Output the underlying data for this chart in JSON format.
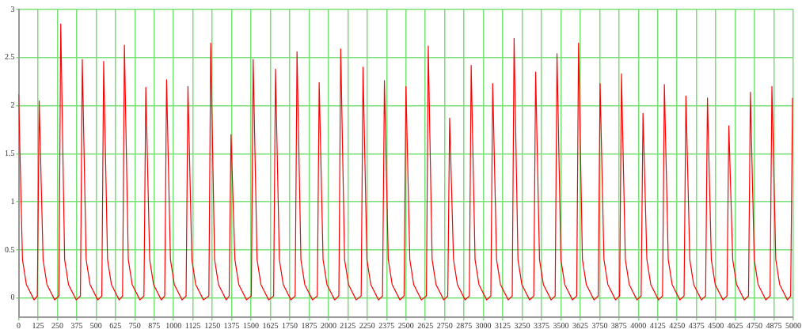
{
  "chart_data": {
    "type": "line",
    "x": [
      0,
      25,
      50,
      100,
      121,
      133,
      158,
      183,
      233,
      260,
      272,
      297,
      322,
      372,
      399,
      411,
      436,
      461,
      511,
      537,
      549,
      574,
      599,
      649,
      671,
      683,
      708,
      733,
      783,
      809,
      821,
      846,
      871,
      921,
      943,
      955,
      980,
      1005,
      1055,
      1081,
      1093,
      1118,
      1143,
      1193,
      1228,
      1240,
      1265,
      1290,
      1340,
      1359,
      1371,
      1396,
      1421,
      1471,
      1502,
      1514,
      1539,
      1564,
      1614,
      1646,
      1658,
      1683,
      1708,
      1758,
      1785,
      1797,
      1822,
      1847,
      1897,
      1928,
      1940,
      1965,
      1990,
      2040,
      2067,
      2079,
      2104,
      2129,
      2179,
      2211,
      2223,
      2248,
      2273,
      2323,
      2349,
      2361,
      2386,
      2411,
      2461,
      2488,
      2500,
      2525,
      2550,
      2600,
      2632,
      2644,
      2669,
      2694,
      2744,
      2770,
      2782,
      2807,
      2832,
      2882,
      2909,
      2921,
      2946,
      2971,
      3021,
      3048,
      3060,
      3085,
      3110,
      3160,
      3186,
      3198,
      3223,
      3248,
      3298,
      3325,
      3337,
      3362,
      3387,
      3437,
      3463,
      3475,
      3500,
      3525,
      3575,
      3602,
      3614,
      3639,
      3664,
      3714,
      3741,
      3753,
      3778,
      3803,
      3853,
      3879,
      3891,
      3916,
      3941,
      3991,
      4018,
      4030,
      4055,
      4080,
      4130,
      4156,
      4168,
      4193,
      4218,
      4268,
      4295,
      4307,
      4332,
      4357,
      4407,
      4434,
      4446,
      4471,
      4496,
      4546,
      4572,
      4584,
      4609,
      4634,
      4684,
      4711,
      4723,
      4748,
      4773,
      4823,
      4850,
      4862,
      4887,
      4912,
      4962,
      4983,
      4995
    ],
    "values": [
      2.12,
      0.4,
      0.14,
      -0.02,
      0.02,
      2.05,
      0.4,
      0.14,
      -0.02,
      0.02,
      2.85,
      0.4,
      0.14,
      -0.02,
      0.02,
      2.48,
      0.4,
      0.14,
      -0.02,
      0.02,
      2.46,
      0.4,
      0.14,
      -0.02,
      0.02,
      2.63,
      0.4,
      0.14,
      -0.02,
      0.02,
      2.19,
      0.4,
      0.14,
      -0.02,
      0.02,
      2.27,
      0.4,
      0.14,
      -0.02,
      0.02,
      2.2,
      0.4,
      0.14,
      -0.02,
      0.02,
      2.65,
      0.4,
      0.14,
      -0.02,
      0.02,
      1.7,
      0.4,
      0.14,
      -0.02,
      0.02,
      2.48,
      0.4,
      0.14,
      -0.02,
      0.02,
      2.38,
      0.4,
      0.14,
      -0.02,
      0.02,
      2.56,
      0.4,
      0.14,
      -0.02,
      0.02,
      2.24,
      0.4,
      0.14,
      -0.02,
      0.02,
      2.59,
      0.4,
      0.14,
      -0.02,
      0.02,
      2.4,
      0.4,
      0.14,
      -0.02,
      0.02,
      2.26,
      0.4,
      0.14,
      -0.02,
      0.02,
      2.2,
      0.4,
      0.14,
      -0.02,
      0.02,
      2.62,
      0.4,
      0.14,
      -0.02,
      0.02,
      1.87,
      0.4,
      0.14,
      -0.02,
      0.02,
      2.42,
      0.4,
      0.14,
      -0.02,
      0.02,
      2.23,
      0.4,
      0.14,
      -0.02,
      0.02,
      2.7,
      0.4,
      0.14,
      -0.02,
      0.02,
      2.35,
      0.4,
      0.14,
      -0.02,
      0.02,
      2.54,
      0.4,
      0.14,
      -0.02,
      0.02,
      2.65,
      0.4,
      0.14,
      -0.02,
      0.02,
      2.23,
      0.4,
      0.14,
      -0.02,
      0.02,
      2.33,
      0.4,
      0.14,
      -0.02,
      0.02,
      1.92,
      0.4,
      0.14,
      -0.02,
      0.02,
      2.22,
      0.4,
      0.14,
      -0.02,
      0.02,
      2.1,
      0.4,
      0.14,
      -0.02,
      0.02,
      2.08,
      0.4,
      0.14,
      -0.02,
      0.02,
      1.79,
      0.4,
      0.14,
      -0.02,
      0.02,
      2.14,
      0.4,
      0.14,
      -0.02,
      0.02,
      2.2,
      0.4,
      0.14,
      -0.02,
      0.02,
      2.08
    ],
    "color": "#ff0000",
    "xlim": [
      0,
      5000
    ],
    "xticks": [
      0,
      125,
      250,
      375,
      500,
      625,
      750,
      875,
      1000,
      1125,
      1250,
      1375,
      1500,
      1625,
      1750,
      1875,
      2000,
      2125,
      2250,
      2375,
      2500,
      2625,
      2750,
      2875,
      3000,
      3125,
      3250,
      3375,
      3500,
      3625,
      3750,
      3875,
      4000,
      4125,
      4250,
      4375,
      4500,
      4625,
      4750,
      4875,
      5000
    ],
    "ylim": [
      -0.2,
      3
    ],
    "yticks": [
      0,
      0.5,
      1,
      1.5,
      2,
      2.5,
      3
    ],
    "grid": true
  }
}
